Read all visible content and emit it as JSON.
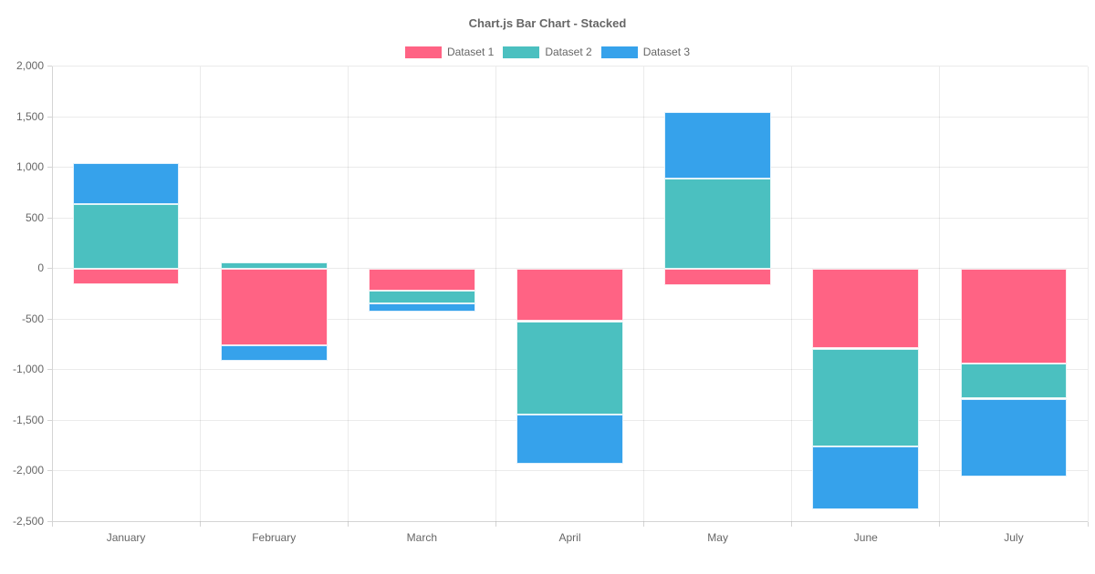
{
  "title": "Chart.js Bar Chart - Stacked",
  "chart_data": {
    "type": "bar",
    "stacked": true,
    "title": "Chart.js Bar Chart - Stacked",
    "categories": [
      "January",
      "February",
      "March",
      "April",
      "May",
      "June",
      "July"
    ],
    "series": [
      {
        "name": "Dataset 1",
        "color": "#FF6384",
        "values": [
          -155,
          -755,
          -215,
          -520,
          -165,
          -790,
          -935
        ]
      },
      {
        "name": "Dataset 2",
        "color": "#4BC0C0",
        "values": [
          635,
          60,
          -130,
          -920,
          885,
          -970,
          -350
        ]
      },
      {
        "name": "Dataset 3",
        "color": "#36A2EB",
        "values": [
          405,
          -160,
          -85,
          -490,
          660,
          -620,
          -765
        ]
      }
    ],
    "ylim": [
      -2500,
      2000
    ],
    "ytick_step": 500,
    "ytick_labels": [
      "2,000",
      "1,500",
      "1,000",
      "500",
      "0",
      "-500",
      "-1,000",
      "-1,500",
      "-2,000",
      "-2,500"
    ],
    "grid": true,
    "legend_position": "top",
    "xlabel": "",
    "ylabel": ""
  },
  "colors": {
    "text": "#666666",
    "grid": "#e6e6e6",
    "axis": "#d4d4d4",
    "background": "#ffffff"
  }
}
